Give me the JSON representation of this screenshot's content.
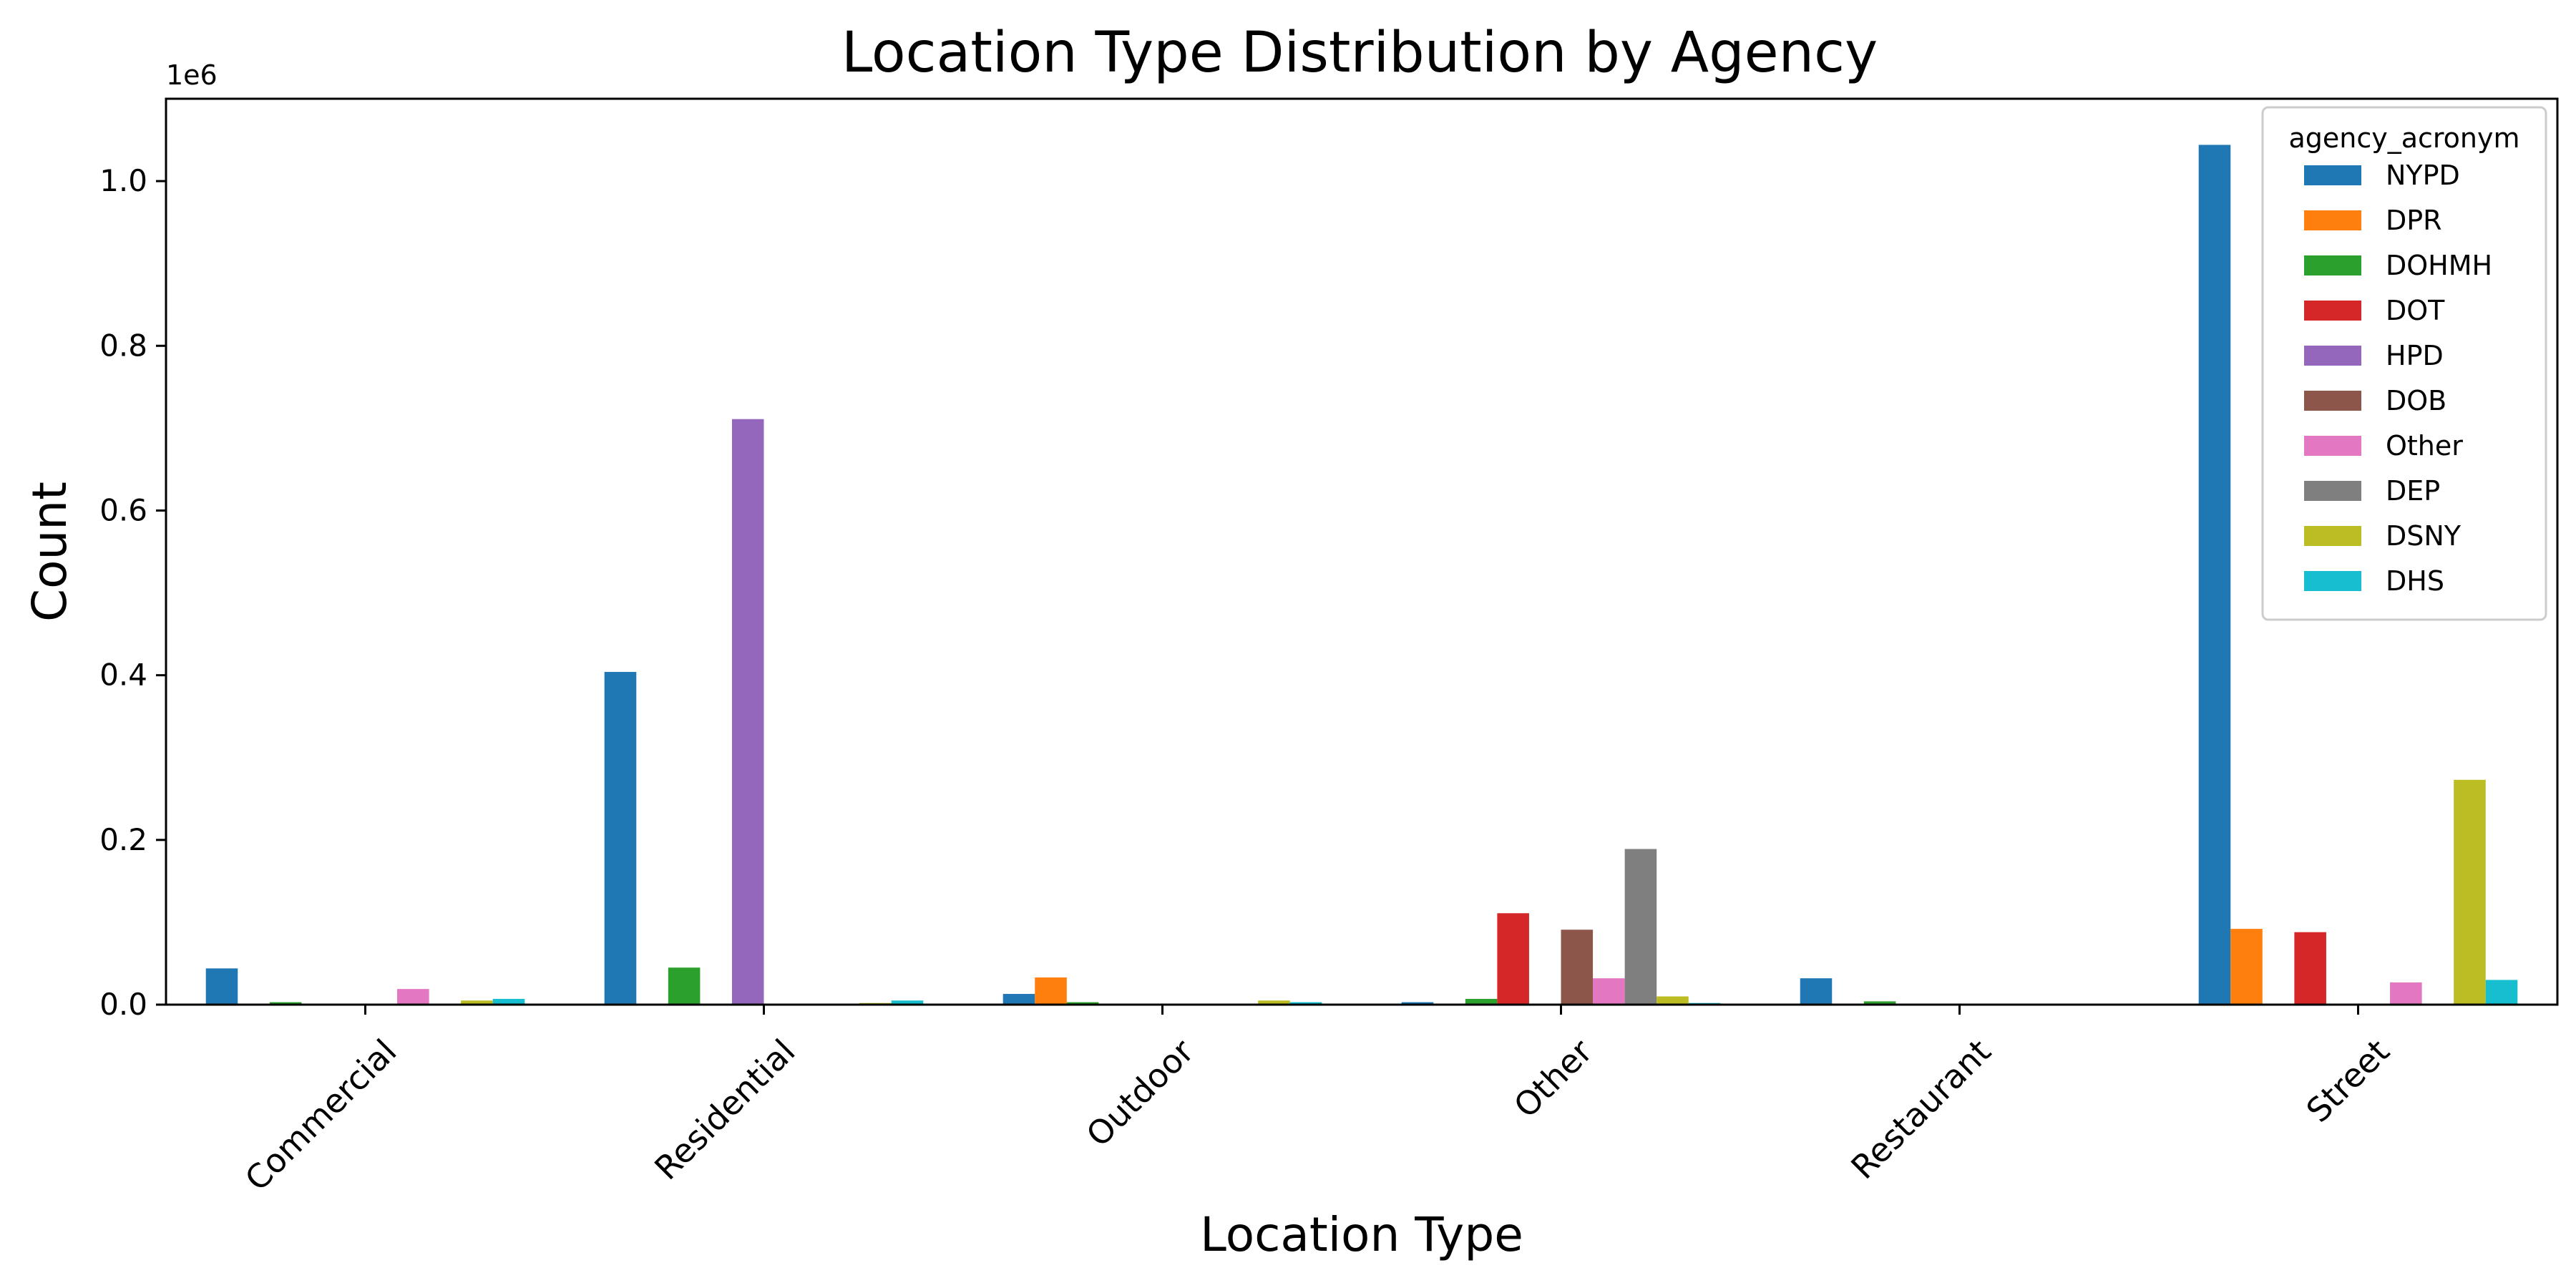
{
  "chart_data": {
    "type": "bar",
    "title": "Location Type Distribution by Agency",
    "xlabel": "Location Type",
    "ylabel": "Count",
    "y_offset_label": "1e6",
    "ylim": [
      0,
      1.1
    ],
    "yticks": [
      "0.0",
      "0.2",
      "0.4",
      "0.6",
      "0.8",
      "1.0"
    ],
    "categories": [
      "Commercial",
      "Residential",
      "Outdoor",
      "Other",
      "Restaurant",
      "Street"
    ],
    "legend": {
      "title": "agency_acronym",
      "position": "top-right"
    },
    "series": [
      {
        "name": "NYPD",
        "color": "#1f77b4",
        "values": [
          0.044,
          0.404,
          0.013,
          0.003,
          0.032,
          1.044
        ]
      },
      {
        "name": "DPR",
        "color": "#ff7f0e",
        "values": [
          0.0,
          0.0,
          0.033,
          0.0,
          0.0,
          0.092
        ]
      },
      {
        "name": "DOHMH",
        "color": "#2ca02c",
        "values": [
          0.003,
          0.045,
          0.003,
          0.007,
          0.004,
          0.0
        ]
      },
      {
        "name": "DOT",
        "color": "#d62728",
        "values": [
          0.0,
          0.0,
          0.0,
          0.111,
          0.0,
          0.088
        ]
      },
      {
        "name": "HPD",
        "color": "#9467bd",
        "values": [
          0.0,
          0.711,
          0.0,
          0.0,
          0.0,
          0.0
        ]
      },
      {
        "name": "DOB",
        "color": "#8c564b",
        "values": [
          0.0,
          0.0,
          0.0,
          0.091,
          0.0,
          0.0
        ]
      },
      {
        "name": "Other",
        "color": "#e377c2",
        "values": [
          0.019,
          0.0,
          0.0,
          0.032,
          0.0,
          0.027
        ]
      },
      {
        "name": "DEP",
        "color": "#7f7f7f",
        "values": [
          0.0,
          0.0,
          0.0,
          0.189,
          0.0,
          0.0
        ]
      },
      {
        "name": "DSNY",
        "color": "#bcbd22",
        "values": [
          0.005,
          0.002,
          0.005,
          0.01,
          0.0,
          0.273
        ]
      },
      {
        "name": "DHS",
        "color": "#17becf",
        "values": [
          0.007,
          0.005,
          0.003,
          0.002,
          0.0,
          0.03
        ]
      }
    ]
  }
}
